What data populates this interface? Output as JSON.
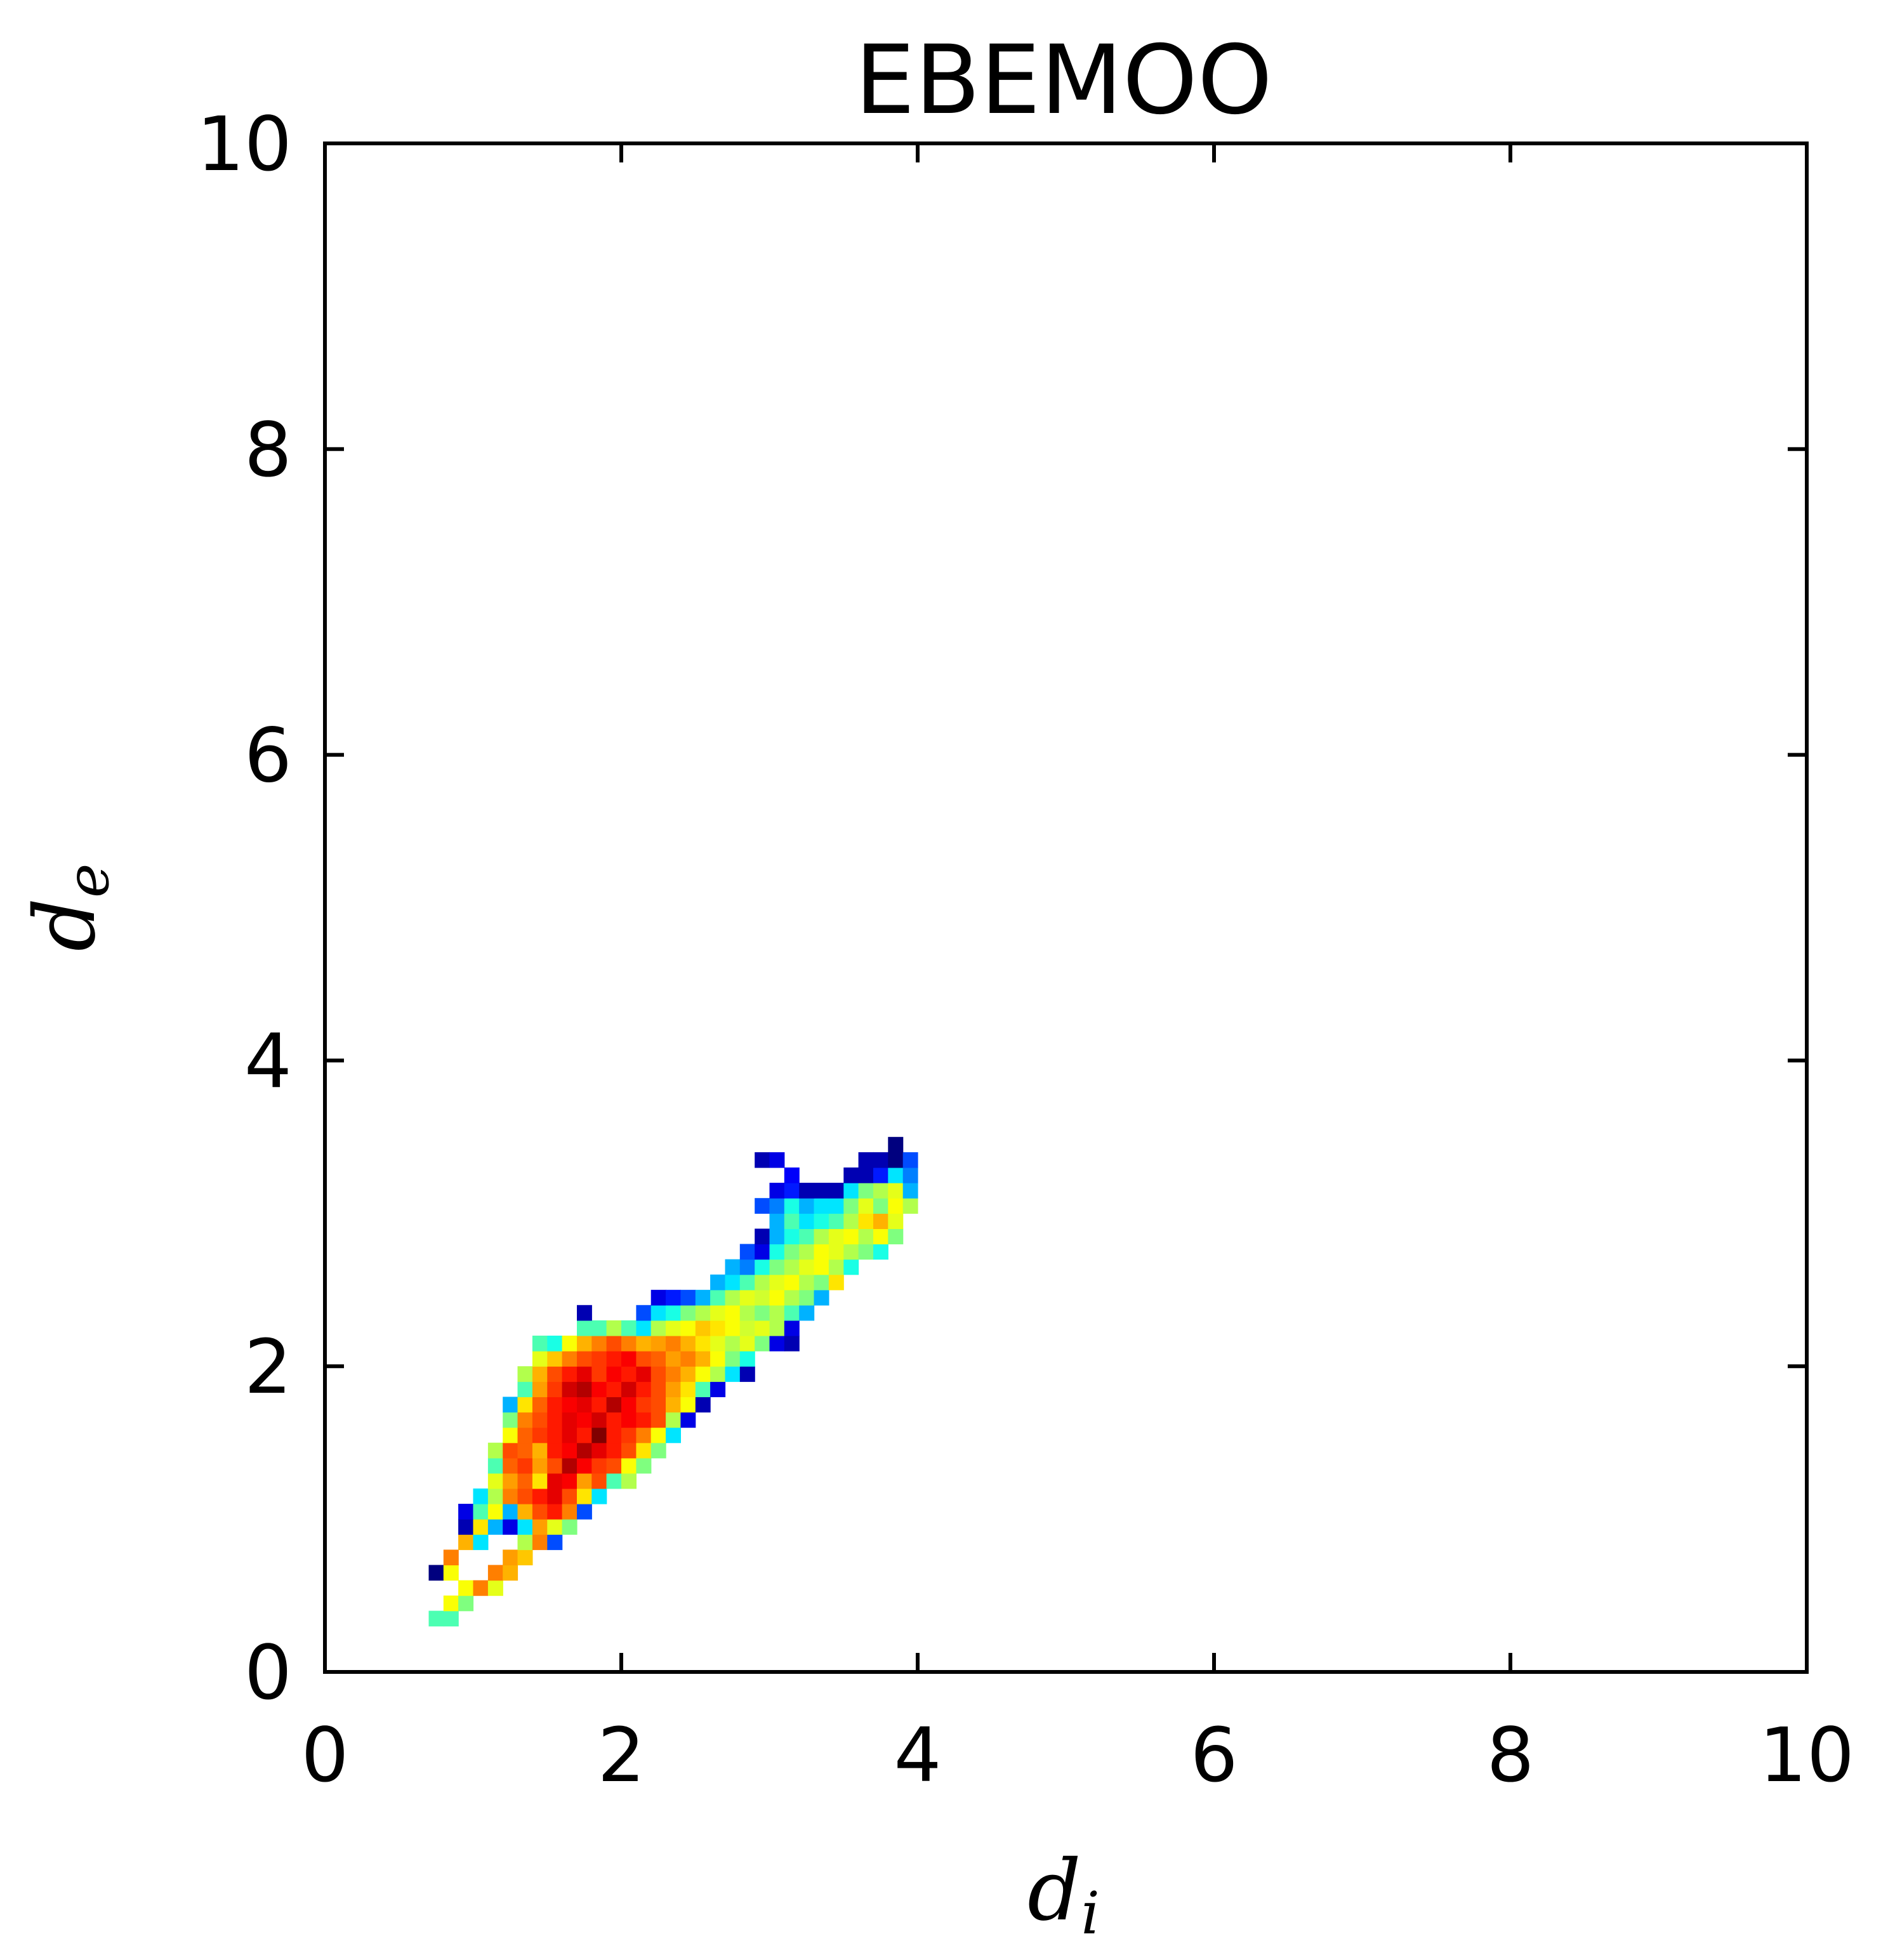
{
  "chart_data": {
    "type": "heatmap",
    "title": "EBEMOO",
    "xlabel": {
      "base": "d",
      "sub": "i"
    },
    "ylabel": {
      "base": "d",
      "sub": "e"
    },
    "xlim": [
      0,
      10
    ],
    "ylim": [
      0,
      10
    ],
    "xticks": [
      "0",
      "2",
      "4",
      "6",
      "8",
      "10"
    ],
    "yticks": [
      "0",
      "2",
      "4",
      "6",
      "8",
      "10"
    ],
    "grid": false,
    "colormap": "jet",
    "colormap_stops": [
      "#00007f",
      "#0000ff",
      "#007fff",
      "#00ffff",
      "#7fff7f",
      "#ffff00",
      "#ff7f00",
      "#ff0000",
      "#7f0000"
    ],
    "cell_size": 0.1,
    "cell_value_range": [
      0,
      1
    ],
    "cells": [
      [
        0.7,
        0.3,
        0.45
      ],
      [
        0.8,
        0.3,
        0.45
      ],
      [
        0.8,
        0.4,
        0.62
      ],
      [
        0.9,
        0.4,
        0.5
      ],
      [
        0.9,
        0.5,
        0.62
      ],
      [
        1.0,
        0.5,
        0.75
      ],
      [
        1.1,
        0.5,
        0.6
      ],
      [
        0.7,
        0.6,
        0.0
      ],
      [
        0.8,
        0.6,
        0.62
      ],
      [
        1.1,
        0.6,
        0.75
      ],
      [
        1.2,
        0.6,
        0.7
      ],
      [
        0.8,
        0.7,
        0.75
      ],
      [
        1.2,
        0.7,
        0.72
      ],
      [
        1.3,
        0.7,
        0.68
      ],
      [
        0.9,
        0.8,
        0.7
      ],
      [
        1.0,
        0.8,
        0.35
      ],
      [
        1.3,
        0.8,
        0.55
      ],
      [
        1.4,
        0.8,
        0.75
      ],
      [
        1.5,
        0.8,
        0.2
      ],
      [
        0.9,
        0.9,
        0.05
      ],
      [
        1.0,
        0.9,
        0.65
      ],
      [
        1.1,
        0.9,
        0.3
      ],
      [
        1.2,
        0.9,
        0.1
      ],
      [
        1.3,
        0.9,
        0.35
      ],
      [
        1.4,
        0.9,
        0.72
      ],
      [
        1.5,
        0.9,
        0.6
      ],
      [
        1.6,
        0.9,
        0.5
      ],
      [
        0.9,
        1.0,
        0.1
      ],
      [
        1.0,
        1.0,
        0.45
      ],
      [
        1.1,
        1.0,
        0.62
      ],
      [
        1.2,
        1.0,
        0.3
      ],
      [
        1.3,
        1.0,
        0.7
      ],
      [
        1.4,
        1.0,
        0.8
      ],
      [
        1.5,
        1.0,
        0.85
      ],
      [
        1.6,
        1.0,
        0.75
      ],
      [
        1.7,
        1.0,
        0.2
      ],
      [
        1.0,
        1.1,
        0.35
      ],
      [
        1.1,
        1.1,
        0.55
      ],
      [
        1.2,
        1.1,
        0.75
      ],
      [
        1.3,
        1.1,
        0.8
      ],
      [
        1.4,
        1.1,
        0.85
      ],
      [
        1.5,
        1.1,
        0.9
      ],
      [
        1.6,
        1.1,
        0.8
      ],
      [
        1.7,
        1.1,
        0.65
      ],
      [
        1.8,
        1.1,
        0.35
      ],
      [
        1.1,
        1.2,
        0.6
      ],
      [
        1.2,
        1.2,
        0.72
      ],
      [
        1.3,
        1.2,
        0.78
      ],
      [
        1.4,
        1.2,
        0.65
      ],
      [
        1.5,
        1.2,
        0.9
      ],
      [
        1.6,
        1.2,
        0.88
      ],
      [
        1.7,
        1.2,
        0.72
      ],
      [
        1.8,
        1.2,
        0.8
      ],
      [
        1.9,
        1.2,
        0.45
      ],
      [
        2.0,
        1.2,
        0.55
      ],
      [
        1.1,
        1.3,
        0.45
      ],
      [
        1.2,
        1.3,
        0.78
      ],
      [
        1.3,
        1.3,
        0.82
      ],
      [
        1.4,
        1.3,
        0.72
      ],
      [
        1.5,
        1.3,
        0.8
      ],
      [
        1.6,
        1.3,
        0.95
      ],
      [
        1.7,
        1.3,
        0.88
      ],
      [
        1.8,
        1.3,
        0.82
      ],
      [
        1.9,
        1.3,
        0.8
      ],
      [
        2.0,
        1.3,
        0.62
      ],
      [
        2.1,
        1.3,
        0.5
      ],
      [
        1.1,
        1.4,
        0.55
      ],
      [
        1.2,
        1.4,
        0.8
      ],
      [
        1.3,
        1.4,
        0.78
      ],
      [
        1.4,
        1.4,
        0.7
      ],
      [
        1.5,
        1.4,
        0.85
      ],
      [
        1.6,
        1.4,
        0.88
      ],
      [
        1.7,
        1.4,
        0.95
      ],
      [
        1.8,
        1.4,
        0.9
      ],
      [
        1.9,
        1.4,
        0.85
      ],
      [
        2.0,
        1.4,
        0.8
      ],
      [
        2.1,
        1.4,
        0.65
      ],
      [
        2.2,
        1.4,
        0.5
      ],
      [
        1.2,
        1.5,
        0.62
      ],
      [
        1.3,
        1.5,
        0.78
      ],
      [
        1.4,
        1.5,
        0.82
      ],
      [
        1.5,
        1.5,
        0.85
      ],
      [
        1.6,
        1.5,
        0.9
      ],
      [
        1.7,
        1.5,
        0.85
      ],
      [
        1.8,
        1.5,
        1.0
      ],
      [
        1.9,
        1.5,
        0.85
      ],
      [
        2.0,
        1.5,
        0.82
      ],
      [
        2.1,
        1.5,
        0.75
      ],
      [
        2.2,
        1.5,
        0.62
      ],
      [
        2.3,
        1.5,
        0.35
      ],
      [
        1.2,
        1.6,
        0.5
      ],
      [
        1.3,
        1.6,
        0.75
      ],
      [
        1.4,
        1.6,
        0.8
      ],
      [
        1.5,
        1.6,
        0.85
      ],
      [
        1.6,
        1.6,
        0.9
      ],
      [
        1.7,
        1.6,
        0.88
      ],
      [
        1.8,
        1.6,
        0.92
      ],
      [
        1.9,
        1.6,
        0.85
      ],
      [
        2.0,
        1.6,
        0.88
      ],
      [
        2.1,
        1.6,
        0.85
      ],
      [
        2.2,
        1.6,
        0.8
      ],
      [
        2.3,
        1.6,
        0.55
      ],
      [
        2.4,
        1.6,
        0.1
      ],
      [
        1.2,
        1.7,
        0.3
      ],
      [
        1.3,
        1.7,
        0.65
      ],
      [
        1.4,
        1.7,
        0.78
      ],
      [
        1.5,
        1.7,
        0.85
      ],
      [
        1.6,
        1.7,
        0.88
      ],
      [
        1.7,
        1.7,
        0.9
      ],
      [
        1.8,
        1.7,
        0.85
      ],
      [
        1.9,
        1.7,
        0.95
      ],
      [
        2.0,
        1.7,
        0.88
      ],
      [
        2.1,
        1.7,
        0.82
      ],
      [
        2.2,
        1.7,
        0.8
      ],
      [
        2.3,
        1.7,
        0.7
      ],
      [
        2.4,
        1.7,
        0.62
      ],
      [
        2.5,
        1.7,
        0.05
      ],
      [
        1.3,
        1.8,
        0.45
      ],
      [
        1.4,
        1.8,
        0.72
      ],
      [
        1.5,
        1.8,
        0.82
      ],
      [
        1.6,
        1.8,
        0.92
      ],
      [
        1.7,
        1.8,
        0.95
      ],
      [
        1.8,
        1.8,
        0.88
      ],
      [
        1.9,
        1.8,
        0.85
      ],
      [
        2.0,
        1.8,
        0.92
      ],
      [
        2.1,
        1.8,
        0.85
      ],
      [
        2.2,
        1.8,
        0.8
      ],
      [
        2.3,
        1.8,
        0.72
      ],
      [
        2.4,
        1.8,
        0.65
      ],
      [
        2.5,
        1.8,
        0.45
      ],
      [
        2.6,
        1.8,
        0.1
      ],
      [
        1.3,
        1.9,
        0.55
      ],
      [
        1.4,
        1.9,
        0.7
      ],
      [
        1.5,
        1.9,
        0.8
      ],
      [
        1.6,
        1.9,
        0.85
      ],
      [
        1.7,
        1.9,
        0.9
      ],
      [
        1.8,
        1.9,
        0.82
      ],
      [
        1.9,
        1.9,
        0.88
      ],
      [
        2.0,
        1.9,
        0.85
      ],
      [
        2.1,
        1.9,
        0.9
      ],
      [
        2.2,
        1.9,
        0.8
      ],
      [
        2.3,
        1.9,
        0.75
      ],
      [
        2.4,
        1.9,
        0.7
      ],
      [
        2.5,
        1.9,
        0.62
      ],
      [
        2.6,
        1.9,
        0.55
      ],
      [
        2.7,
        1.9,
        0.35
      ],
      [
        2.8,
        1.9,
        0.05
      ],
      [
        1.4,
        2.0,
        0.6
      ],
      [
        1.5,
        2.0,
        0.68
      ],
      [
        1.6,
        2.0,
        0.75
      ],
      [
        1.7,
        2.0,
        0.8
      ],
      [
        1.8,
        2.0,
        0.82
      ],
      [
        1.9,
        2.0,
        0.85
      ],
      [
        2.0,
        2.0,
        0.88
      ],
      [
        2.1,
        2.0,
        0.8
      ],
      [
        2.2,
        2.0,
        0.78
      ],
      [
        2.3,
        2.0,
        0.72
      ],
      [
        2.4,
        2.0,
        0.75
      ],
      [
        2.5,
        2.0,
        0.7
      ],
      [
        2.6,
        2.0,
        0.62
      ],
      [
        2.7,
        2.0,
        0.5
      ],
      [
        2.8,
        2.0,
        0.4
      ],
      [
        1.4,
        2.1,
        0.45
      ],
      [
        1.5,
        2.1,
        0.4
      ],
      [
        1.6,
        2.1,
        0.62
      ],
      [
        1.7,
        2.1,
        0.7
      ],
      [
        1.8,
        2.1,
        0.75
      ],
      [
        1.9,
        2.1,
        0.8
      ],
      [
        2.0,
        2.1,
        0.75
      ],
      [
        2.1,
        2.1,
        0.7
      ],
      [
        2.2,
        2.1,
        0.72
      ],
      [
        2.3,
        2.1,
        0.75
      ],
      [
        2.4,
        2.1,
        0.7
      ],
      [
        2.5,
        2.1,
        0.65
      ],
      [
        2.6,
        2.1,
        0.6
      ],
      [
        2.7,
        2.1,
        0.55
      ],
      [
        2.8,
        2.1,
        0.6
      ],
      [
        2.9,
        2.1,
        0.5
      ],
      [
        3.0,
        2.1,
        0.1
      ],
      [
        3.1,
        2.1,
        0.05
      ],
      [
        1.7,
        2.2,
        0.45
      ],
      [
        1.8,
        2.2,
        0.45
      ],
      [
        1.9,
        2.2,
        0.55
      ],
      [
        2.0,
        2.2,
        0.45
      ],
      [
        2.1,
        2.2,
        0.35
      ],
      [
        2.2,
        2.2,
        0.55
      ],
      [
        2.3,
        2.2,
        0.6
      ],
      [
        2.4,
        2.2,
        0.62
      ],
      [
        2.5,
        2.2,
        0.68
      ],
      [
        2.6,
        2.2,
        0.65
      ],
      [
        2.7,
        2.2,
        0.62
      ],
      [
        2.8,
        2.2,
        0.58
      ],
      [
        2.9,
        2.2,
        0.6
      ],
      [
        3.0,
        2.2,
        0.55
      ],
      [
        3.1,
        2.2,
        0.1
      ],
      [
        1.7,
        2.3,
        0.05
      ],
      [
        2.1,
        2.3,
        0.2
      ],
      [
        2.2,
        2.3,
        0.35
      ],
      [
        2.3,
        2.3,
        0.4
      ],
      [
        2.4,
        2.3,
        0.5
      ],
      [
        2.5,
        2.3,
        0.55
      ],
      [
        2.6,
        2.3,
        0.6
      ],
      [
        2.7,
        2.3,
        0.62
      ],
      [
        2.8,
        2.3,
        0.55
      ],
      [
        2.9,
        2.3,
        0.5
      ],
      [
        3.0,
        2.3,
        0.55
      ],
      [
        3.1,
        2.3,
        0.45
      ],
      [
        3.2,
        2.3,
        0.3
      ],
      [
        2.2,
        2.4,
        0.1
      ],
      [
        2.3,
        2.4,
        0.15
      ],
      [
        2.4,
        2.4,
        0.2
      ],
      [
        2.5,
        2.4,
        0.3
      ],
      [
        2.6,
        2.4,
        0.45
      ],
      [
        2.7,
        2.4,
        0.55
      ],
      [
        2.8,
        2.4,
        0.6
      ],
      [
        2.9,
        2.4,
        0.58
      ],
      [
        3.0,
        2.4,
        0.62
      ],
      [
        3.1,
        2.4,
        0.55
      ],
      [
        3.2,
        2.4,
        0.5
      ],
      [
        3.3,
        2.4,
        0.3
      ],
      [
        2.6,
        2.5,
        0.3
      ],
      [
        2.7,
        2.5,
        0.35
      ],
      [
        2.8,
        2.5,
        0.45
      ],
      [
        2.9,
        2.5,
        0.55
      ],
      [
        3.0,
        2.5,
        0.6
      ],
      [
        3.1,
        2.5,
        0.62
      ],
      [
        3.2,
        2.5,
        0.55
      ],
      [
        3.3,
        2.5,
        0.5
      ],
      [
        3.4,
        2.5,
        0.65
      ],
      [
        2.7,
        2.6,
        0.3
      ],
      [
        2.8,
        2.6,
        0.25
      ],
      [
        2.9,
        2.6,
        0.4
      ],
      [
        3.0,
        2.6,
        0.5
      ],
      [
        3.1,
        2.6,
        0.55
      ],
      [
        3.2,
        2.6,
        0.6
      ],
      [
        3.3,
        2.6,
        0.62
      ],
      [
        3.4,
        2.6,
        0.55
      ],
      [
        3.5,
        2.6,
        0.4
      ],
      [
        2.8,
        2.7,
        0.2
      ],
      [
        2.9,
        2.7,
        0.1
      ],
      [
        3.0,
        2.7,
        0.4
      ],
      [
        3.1,
        2.7,
        0.5
      ],
      [
        3.2,
        2.7,
        0.55
      ],
      [
        3.3,
        2.7,
        0.62
      ],
      [
        3.4,
        2.7,
        0.6
      ],
      [
        3.5,
        2.7,
        0.55
      ],
      [
        3.6,
        2.7,
        0.5
      ],
      [
        3.7,
        2.7,
        0.4
      ],
      [
        2.9,
        2.8,
        0.05
      ],
      [
        3.0,
        2.8,
        0.3
      ],
      [
        3.1,
        2.8,
        0.4
      ],
      [
        3.2,
        2.8,
        0.45
      ],
      [
        3.3,
        2.8,
        0.55
      ],
      [
        3.4,
        2.8,
        0.6
      ],
      [
        3.5,
        2.8,
        0.62
      ],
      [
        3.6,
        2.8,
        0.55
      ],
      [
        3.7,
        2.8,
        0.62
      ],
      [
        3.8,
        2.8,
        0.5
      ],
      [
        3.0,
        2.9,
        0.3
      ],
      [
        3.1,
        2.9,
        0.45
      ],
      [
        3.2,
        2.9,
        0.35
      ],
      [
        3.3,
        2.9,
        0.4
      ],
      [
        3.4,
        2.9,
        0.45
      ],
      [
        3.5,
        2.9,
        0.55
      ],
      [
        3.6,
        2.9,
        0.65
      ],
      [
        3.7,
        2.9,
        0.7
      ],
      [
        3.8,
        2.9,
        0.6
      ],
      [
        2.9,
        3.0,
        0.2
      ],
      [
        3.0,
        3.0,
        0.25
      ],
      [
        3.1,
        3.0,
        0.4
      ],
      [
        3.2,
        3.0,
        0.3
      ],
      [
        3.3,
        3.0,
        0.35
      ],
      [
        3.4,
        3.0,
        0.35
      ],
      [
        3.5,
        3.0,
        0.5
      ],
      [
        3.6,
        3.0,
        0.6
      ],
      [
        3.7,
        3.0,
        0.5
      ],
      [
        3.8,
        3.0,
        0.62
      ],
      [
        3.9,
        3.0,
        0.55
      ],
      [
        3.0,
        3.1,
        0.1
      ],
      [
        3.1,
        3.1,
        0.15
      ],
      [
        3.2,
        3.1,
        0.05
      ],
      [
        3.3,
        3.1,
        0.05
      ],
      [
        3.4,
        3.1,
        0.05
      ],
      [
        3.5,
        3.1,
        0.35
      ],
      [
        3.6,
        3.1,
        0.5
      ],
      [
        3.7,
        3.1,
        0.55
      ],
      [
        3.8,
        3.1,
        0.6
      ],
      [
        3.9,
        3.1,
        0.3
      ],
      [
        3.1,
        3.2,
        0.12
      ],
      [
        3.5,
        3.2,
        0.05
      ],
      [
        3.6,
        3.2,
        0.05
      ],
      [
        3.7,
        3.2,
        0.15
      ],
      [
        3.8,
        3.2,
        0.35
      ],
      [
        3.9,
        3.2,
        0.25
      ],
      [
        2.9,
        3.3,
        0.05
      ],
      [
        3.0,
        3.3,
        0.1
      ],
      [
        3.6,
        3.3,
        0.05
      ],
      [
        3.7,
        3.3,
        0.05
      ],
      [
        3.8,
        3.3,
        0.0
      ],
      [
        3.9,
        3.3,
        0.2
      ],
      [
        3.8,
        3.4,
        0.0
      ]
    ]
  }
}
